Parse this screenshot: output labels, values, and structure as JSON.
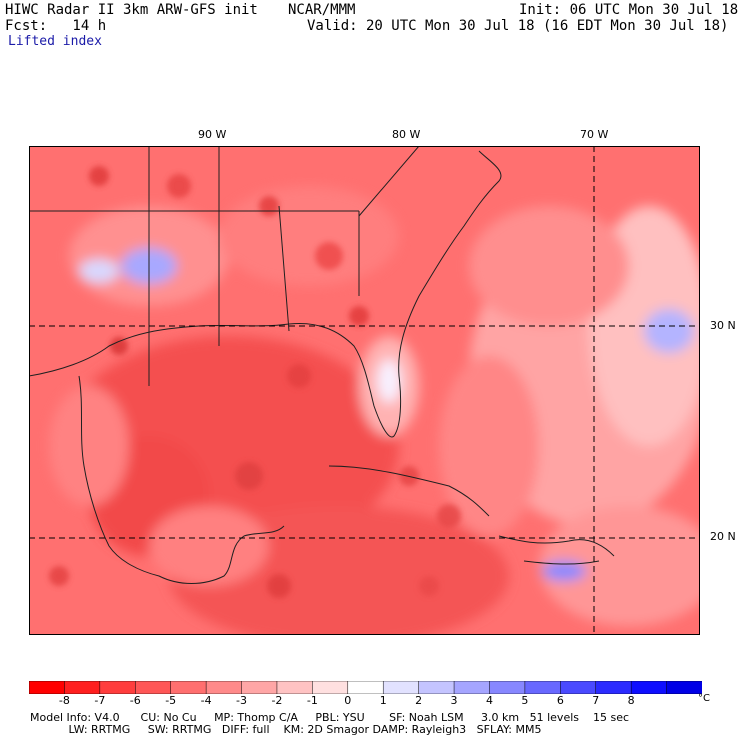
{
  "header": {
    "model_title": "HIWC Radar II 3km ARW-GFS init",
    "org": "NCAR/MMM",
    "init": "Init: 06 UTC Mon 30 Jul 18",
    "fcst": "Fcst:   14 h",
    "valid": "Valid: 20 UTC Mon 30 Jul 18 (16 EDT Mon 30 Jul 18)",
    "field": "Lifted index"
  },
  "map": {
    "lon_labels": [
      "90 W",
      "80 W",
      "70 W"
    ],
    "lat_labels": [
      "30 N",
      "20 N"
    ]
  },
  "colorbar": {
    "unit": "°C",
    "tick_labels": [
      "-8",
      "-7",
      "-6",
      "-5",
      "-4",
      "-3",
      "-2",
      "-1",
      "0",
      "1",
      "2",
      "3",
      "4",
      "5",
      "6",
      "7",
      "8"
    ],
    "colors": [
      "#ff0000",
      "#ff1f1f",
      "#ff3d3d",
      "#ff5656",
      "#ff6f6f",
      "#ff8a8a",
      "#ffa6a6",
      "#ffc3c3",
      "#ffe0e0",
      "#ffffff",
      "#e2e2ff",
      "#c4c4ff",
      "#a5a5ff",
      "#8787ff",
      "#6868ff",
      "#4a4aff",
      "#2b2bff",
      "#0e0eff",
      "#0000e6"
    ]
  },
  "footer": {
    "line1": "Model Info: V4.0      CU: No Cu     MP: Thomp C/A     PBL: YSU       SF: Noah LSM     3.0 km   51 levels    15 sec",
    "line2": "           LW: RRTMG     SW: RRTMG   DIFF: full    KM: 2D Smagor DAMP: Rayleigh3   SFLAY: MM5"
  }
}
